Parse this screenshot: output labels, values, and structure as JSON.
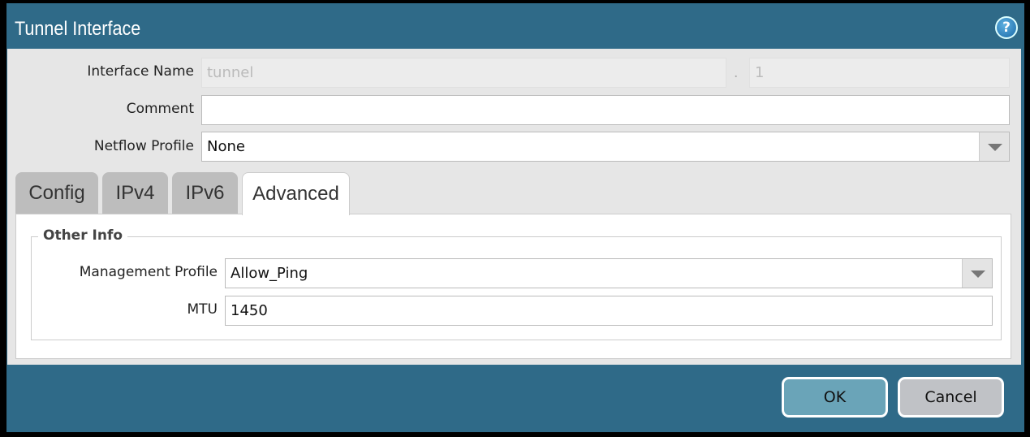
{
  "dialog": {
    "title": "Tunnel Interface",
    "help_icon": "help-icon"
  },
  "fields": {
    "interface_name_label": "Interface Name",
    "interface_name_value": "tunnel",
    "separator": ".",
    "interface_number": "1",
    "comment_label": "Comment",
    "comment_value": "",
    "netflow_label": "Netflow Profile",
    "netflow_value": "None"
  },
  "tabs": [
    {
      "label": "Config"
    },
    {
      "label": "IPv4"
    },
    {
      "label": "IPv6"
    },
    {
      "label": "Advanced",
      "active": true
    }
  ],
  "advanced": {
    "section_title": "Other Info",
    "mgmt_label": "Management Profile",
    "mgmt_value": "Allow_Ping",
    "mtu_label": "MTU",
    "mtu_value": "1450"
  },
  "footer": {
    "ok": "OK",
    "cancel": "Cancel"
  },
  "colors": {
    "titlebar": "#2f6a88",
    "ok": "#6aa4b8",
    "cancel": "#c0c2c6"
  }
}
